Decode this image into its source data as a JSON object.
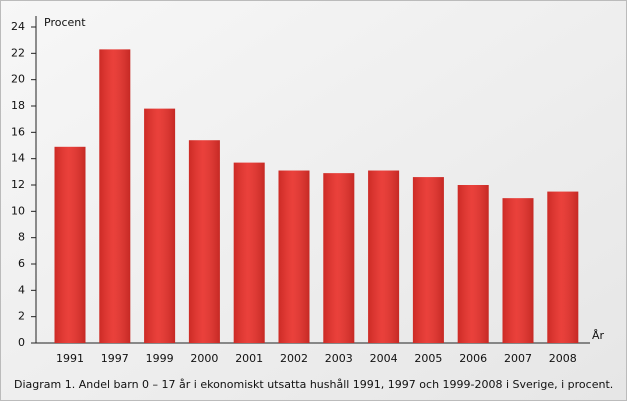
{
  "chart_data": {
    "type": "bar",
    "y_label": "Procent",
    "x_label": "År",
    "caption": "Diagram 1. Andel barn 0 – 17 år i ekonomiskt utsatta hushåll 1991, 1997 och 1999-2008 i Sverige, i procent.",
    "categories": [
      "1991",
      "1997",
      "1999",
      "2000",
      "2001",
      "2002",
      "2003",
      "2004",
      "2005",
      "2006",
      "2007",
      "2008"
    ],
    "values": [
      14.9,
      22.3,
      17.8,
      15.4,
      13.7,
      13.1,
      12.9,
      13.1,
      12.6,
      12.0,
      11.0,
      11.5
    ],
    "color": "#e8302a",
    "ylim": [
      0,
      24
    ],
    "yticks": [
      0,
      2,
      4,
      6,
      8,
      10,
      12,
      14,
      16,
      18,
      20,
      22,
      24
    ],
    "grid": false
  }
}
